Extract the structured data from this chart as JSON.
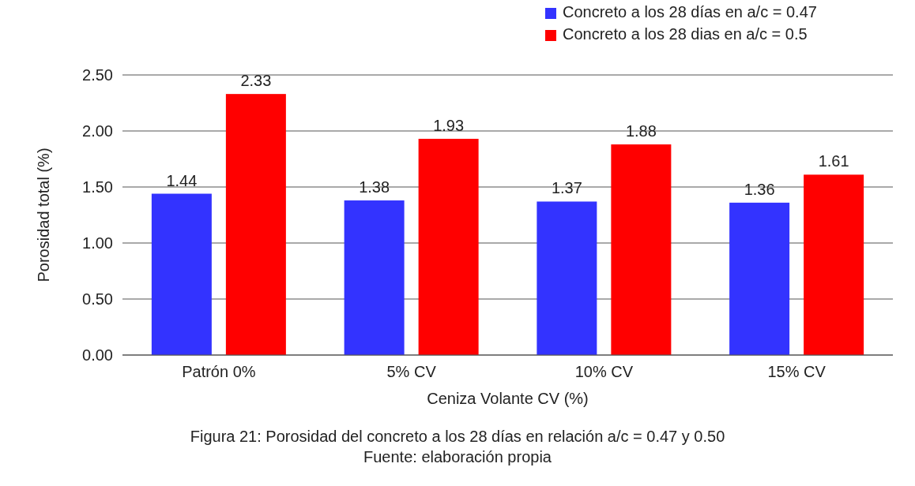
{
  "chart_data": {
    "type": "bar",
    "xlabel": "Ceniza Volante  CV (%)",
    "ylabel": "Porosidad total (%)",
    "categories": [
      "Patrón 0%",
      "5% CV",
      "10% CV",
      "15% CV"
    ],
    "series": [
      {
        "name": "Concreto a los 28 días en a/c = 0.47",
        "color": "#3333ff",
        "values": [
          1.44,
          1.38,
          1.37,
          1.36
        ]
      },
      {
        "name": "Concreto a los 28 dias en a/c = 0.5",
        "color": "#ff0000",
        "values": [
          2.33,
          1.93,
          1.88,
          1.61
        ]
      }
    ],
    "ylim": [
      0,
      2.5
    ],
    "yticks": [
      {
        "value": 0,
        "label": "0.00"
      },
      {
        "value": 0.5,
        "label": "0.50"
      },
      {
        "value": 1,
        "label": "1.00"
      },
      {
        "value": 1.5,
        "label": "1.50"
      },
      {
        "value": 2,
        "label": "2.00"
      },
      {
        "value": 2.5,
        "label": "2.50"
      }
    ],
    "grid": "y",
    "legend": "top right",
    "data_labels": true,
    "annotations": [
      "Figura 21: Porosidad del concreto a los 28 días en relación a/c = 0.47 y 0.50",
      "Fuente: elaboración propia"
    ]
  }
}
